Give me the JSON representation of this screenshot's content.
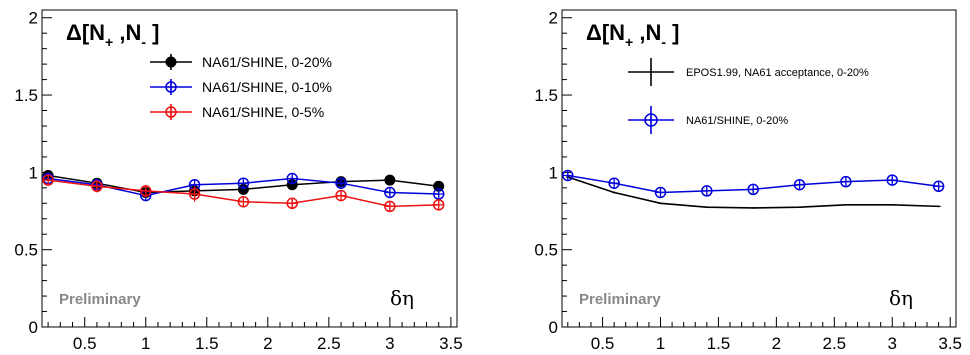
{
  "chart_data": [
    {
      "type": "line",
      "title": "Δ[N+, N-]",
      "title_parts": {
        "main": "Δ[N",
        "sub1": "+",
        "mid": " ,N",
        "sub2": "-",
        "end": " ]"
      },
      "xlabel": "δη",
      "ylabel": "",
      "xlim": [
        0.15,
        3.55
      ],
      "ylim": [
        0,
        2.05
      ],
      "x_ticks": [
        0.5,
        1,
        1.5,
        2,
        2.5,
        3,
        3.5
      ],
      "x_tick_labels": [
        "0.5",
        "1",
        "1.5",
        "2",
        "2.5",
        "3",
        "3.5"
      ],
      "y_ticks": [
        0,
        0.5,
        1,
        1.5,
        2
      ],
      "y_tick_labels": [
        "0",
        "0.5",
        "1",
        "1.5",
        "2"
      ],
      "annotation": "Preliminary",
      "legend_position": "top-right",
      "series": [
        {
          "name": "NA61/SHINE, 0-20%",
          "color": "#000000",
          "marker": "filled-circle",
          "x": [
            0.2,
            0.6,
            1.0,
            1.4,
            1.8,
            2.2,
            2.6,
            3.0,
            3.4
          ],
          "y": [
            0.98,
            0.93,
            0.87,
            0.88,
            0.89,
            0.92,
            0.94,
            0.95,
            0.91
          ],
          "yerr": [
            0.02,
            0.02,
            0.02,
            0.02,
            0.02,
            0.02,
            0.02,
            0.02,
            0.02
          ]
        },
        {
          "name": "NA61/SHINE, 0-10%",
          "color": "#0000dd",
          "marker": "open-circle-cross",
          "x": [
            0.2,
            0.6,
            1.0,
            1.4,
            1.8,
            2.2,
            2.6,
            3.0,
            3.4
          ],
          "y": [
            0.96,
            0.92,
            0.85,
            0.92,
            0.93,
            0.96,
            0.93,
            0.87,
            0.86
          ],
          "yerr": [
            0.02,
            0.02,
            0.02,
            0.02,
            0.02,
            0.02,
            0.02,
            0.02,
            0.02
          ]
        },
        {
          "name": "NA61/SHINE, 0-5%",
          "color": "#ee1111",
          "marker": "open-circle-cross",
          "x": [
            0.2,
            0.6,
            1.0,
            1.4,
            1.8,
            2.2,
            2.6,
            3.0,
            3.4
          ],
          "y": [
            0.95,
            0.91,
            0.88,
            0.86,
            0.81,
            0.8,
            0.85,
            0.78,
            0.79
          ],
          "yerr": [
            0.03,
            0.04,
            0.04,
            0.05,
            0.03,
            0.03,
            0.03,
            0.03,
            0.03
          ]
        }
      ]
    },
    {
      "type": "line",
      "title": "Δ[N+, N-]",
      "title_parts": {
        "main": "Δ[N",
        "sub1": "+",
        "mid": " ,N",
        "sub2": "-",
        "end": " ]"
      },
      "xlabel": "δη",
      "ylabel": "",
      "xlim": [
        0.15,
        3.55
      ],
      "ylim": [
        0,
        2.05
      ],
      "x_ticks": [
        0.5,
        1,
        1.5,
        2,
        2.5,
        3,
        3.5
      ],
      "x_tick_labels": [
        "0.5",
        "1",
        "1.5",
        "2",
        "2.5",
        "3",
        "3.5"
      ],
      "y_ticks": [
        0,
        0.5,
        1,
        1.5,
        2
      ],
      "y_tick_labels": [
        "0",
        "0.5",
        "1",
        "1.5",
        "2"
      ],
      "annotation": "Preliminary",
      "legend_position": "top-right",
      "series": [
        {
          "name": "EPOS1.99, NA61 acceptance, 0-20%",
          "color": "#000000",
          "marker": "none",
          "x": [
            0.2,
            0.6,
            1.0,
            1.4,
            1.8,
            2.2,
            2.6,
            3.0,
            3.4
          ],
          "y": [
            0.97,
            0.87,
            0.8,
            0.775,
            0.77,
            0.775,
            0.79,
            0.79,
            0.78
          ],
          "yerr": [
            0.005,
            0.005,
            0.005,
            0.005,
            0.005,
            0.005,
            0.005,
            0.005,
            0.005
          ]
        },
        {
          "name": "NA61/SHINE, 0-20%",
          "color": "#0000dd",
          "marker": "open-circle-cross",
          "x": [
            0.2,
            0.6,
            1.0,
            1.4,
            1.8,
            2.2,
            2.6,
            3.0,
            3.4
          ],
          "y": [
            0.98,
            0.93,
            0.87,
            0.88,
            0.89,
            0.92,
            0.94,
            0.95,
            0.91
          ],
          "yerr": [
            0.02,
            0.02,
            0.02,
            0.02,
            0.02,
            0.02,
            0.02,
            0.02,
            0.02
          ]
        }
      ]
    }
  ]
}
